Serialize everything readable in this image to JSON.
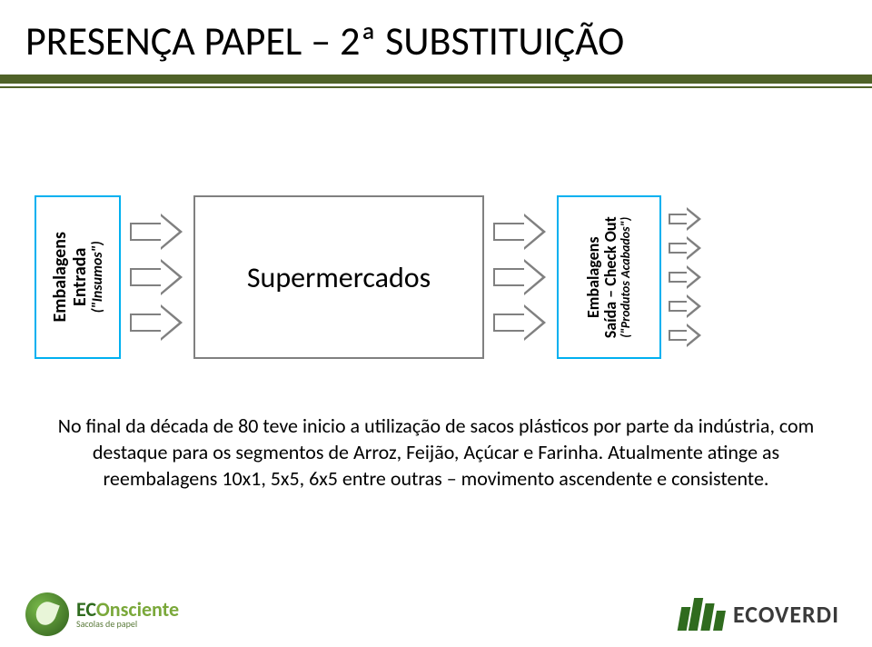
{
  "title": "PRESENÇA PAPEL – 2ª SUBSTITUIÇÃO",
  "accent_color": "#4f6228",
  "diagram": {
    "box_border_colors": [
      "#00b0f0",
      "#808080",
      "#00b0f0"
    ],
    "left_box": {
      "line1": "Embalagens",
      "line2": "Entrada",
      "line3": "(\"Insumos\")",
      "text_color": "#000000"
    },
    "center_box": {
      "label": "Supermercados"
    },
    "right_box": {
      "line1": "Embalagens",
      "line2": "Saída – Check Out",
      "line3": "(\"Produtos Acabados\")",
      "text_color": "#000000"
    },
    "arrow_border_color": "#808080",
    "arrows_in_count": 3,
    "arrows_mid_count": 3,
    "arrows_out_count": 5
  },
  "body_text": "No final da década de 80 teve inicio a utilização de sacos plásticos por parte da indústria, com destaque para os segmentos de  Arroz, Feijão, Açúcar e Farinha. Atualmente atinge as reembalagens 10x1, 5x5, 6x5 entre outras – movimento  ascendente e consistente.",
  "footer": {
    "left_brand_main": "ECOnsciente",
    "left_brand_tag": "Sacolas de papel",
    "right_brand": "ECOVERDI"
  }
}
